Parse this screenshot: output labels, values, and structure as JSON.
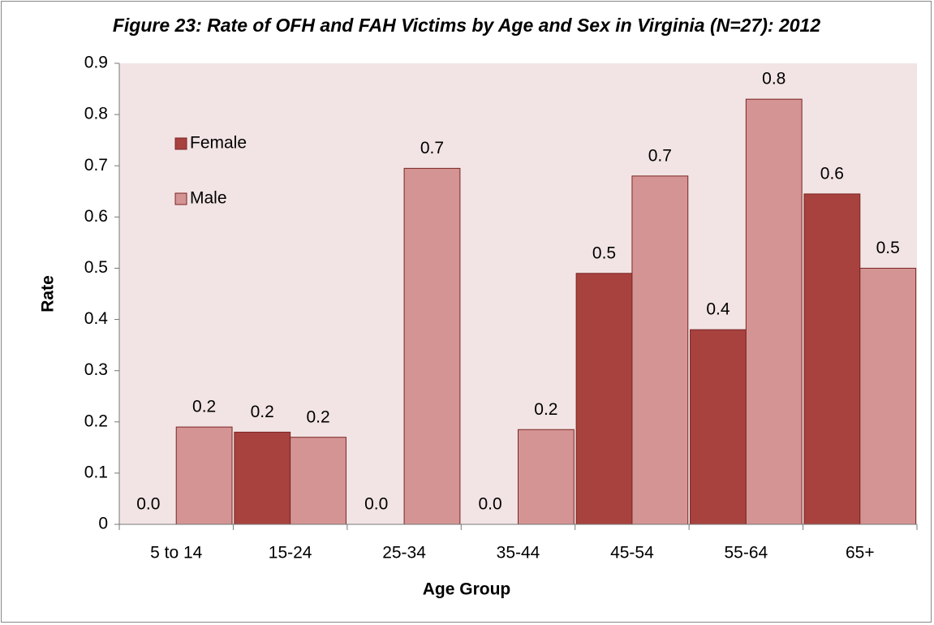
{
  "chart_data": {
    "type": "bar",
    "title": "Figure 23: Rate of OFH and FAH Victims by Age and Sex in Virginia (N=27): 2012",
    "x_label": "Age Group",
    "y_label": "Rate",
    "categories": [
      "5 to 14",
      "15-24",
      "25-34",
      "35-44",
      "45-54",
      "55-64",
      "65+"
    ],
    "series": [
      {
        "name": "Female",
        "color": "#a8423f",
        "values": [
          0,
          0.18,
          0,
          0,
          0.49,
          0.38,
          0.645
        ],
        "value_labels": [
          "0.0",
          "0.2",
          "0.0",
          "0.0",
          "0.5",
          "0.4",
          "0.6"
        ]
      },
      {
        "name": "Male",
        "color": "#d49494",
        "values": [
          0.19,
          0.17,
          0.695,
          0.185,
          0.68,
          0.83,
          0.5
        ],
        "value_labels": [
          "0.2",
          "0.2",
          "0.7",
          "0.2",
          "0.7",
          "0.8",
          "0.5"
        ]
      }
    ],
    "ylim": [
      0,
      0.9
    ],
    "yticks": [
      0,
      0.1,
      0.2,
      0.3,
      0.4,
      0.5,
      0.6,
      0.7,
      0.8,
      0.9
    ],
    "grid": false,
    "legend": "upper left",
    "plot_background": "#f2e4e4"
  }
}
